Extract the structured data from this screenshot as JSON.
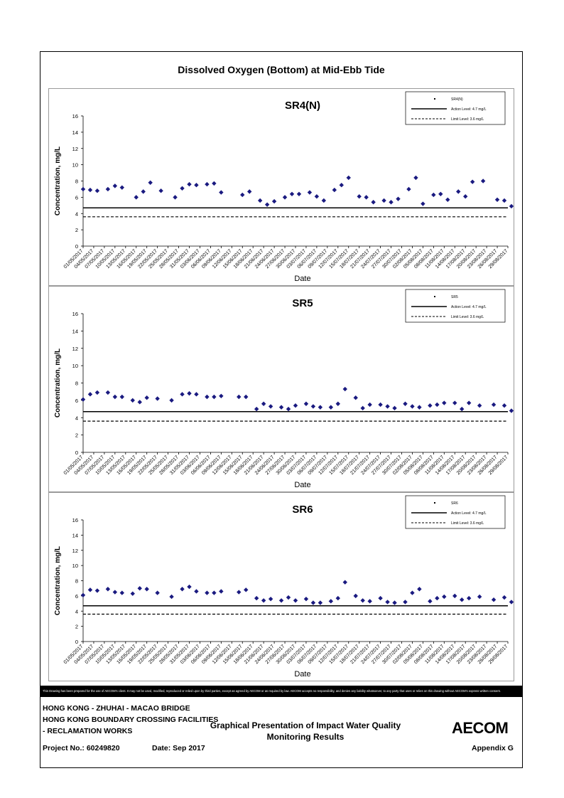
{
  "page": {
    "main_title": "Dissolved Oxygen (Bottom) at Mid-Ebb Tide",
    "disclaimer": "This Drawing has been prepared for the use of AECOM's client. It may not be used, modified, reproduced or relied upon by third parties, except as agreed by AECOM or as required by law. AECOM accepts no responsibility, and denies any liability whatsoever, to any party that uses or relies on this drawing without AECOM's express written consent.",
    "footer": {
      "line1": "HONG KONG - ZHUHAI - MACAO BRIDGE",
      "line2": "HONG KONG BOUNDARY CROSSING FACILITIES",
      "line3": "- RECLAMATION WORKS",
      "center_title_1": "Graphical Presentation of Impact Water Quality",
      "center_title_2": "Monitoring Results",
      "project": "Project No.: 60249820",
      "date": "Date: Sep 2017",
      "appendix": "Appendix G",
      "logo": "AECOM"
    }
  },
  "chart_data": [
    {
      "type": "scatter",
      "title": "SR4(N)",
      "xlabel": "Date",
      "ylabel": "Concentration, mg/L",
      "ylim": [
        0,
        16
      ],
      "yticks": [
        0,
        2,
        4,
        6,
        8,
        10,
        12,
        14,
        16
      ],
      "xticks": [
        "01/05/2017",
        "04/05/2017",
        "07/05/2017",
        "10/05/2017",
        "13/05/2017",
        "16/05/2017",
        "19/05/2017",
        "22/05/2017",
        "25/05/2017",
        "28/05/2017",
        "31/05/2017",
        "03/06/2017",
        "06/06/2017",
        "09/06/2017",
        "12/06/2017",
        "15/06/2017",
        "18/06/2017",
        "21/06/2017",
        "24/06/2017",
        "27/06/2017",
        "30/06/2017",
        "03/07/2017",
        "06/07/2017",
        "09/07/2017",
        "12/07/2017",
        "15/07/2017",
        "18/07/2017",
        "21/07/2017",
        "24/07/2017",
        "27/07/2017",
        "30/07/2017",
        "02/08/2017",
        "05/08/2017",
        "08/08/2017",
        "11/08/2017",
        "14/08/2017",
        "17/08/2017",
        "20/08/2017",
        "23/08/2017",
        "26/08/2017",
        "29/08/2017"
      ],
      "legend": [
        "SR4(N)",
        "Action Level: 4.7 mg/L",
        "Limit Level: 3.6 mg/L"
      ],
      "legend_position": "top-right",
      "action_level": 4.7,
      "limit_level": 3.6,
      "marker_color": "#1a1a80",
      "x": [
        "01/05/2017",
        "03/05/2017",
        "05/05/2017",
        "08/05/2017",
        "10/05/2017",
        "12/05/2017",
        "16/05/2017",
        "18/05/2017",
        "20/05/2017",
        "23/05/2017",
        "27/05/2017",
        "29/05/2017",
        "31/05/2017",
        "02/06/2017",
        "05/06/2017",
        "07/06/2017",
        "09/06/2017",
        "15/06/2017",
        "17/06/2017",
        "20/06/2017",
        "22/06/2017",
        "24/06/2017",
        "27/06/2017",
        "29/06/2017",
        "01/07/2017",
        "04/07/2017",
        "06/07/2017",
        "08/07/2017",
        "11/07/2017",
        "13/07/2017",
        "15/07/2017",
        "18/07/2017",
        "20/07/2017",
        "22/07/2017",
        "25/07/2017",
        "27/07/2017",
        "29/07/2017",
        "01/08/2017",
        "03/08/2017",
        "05/08/2017",
        "08/08/2017",
        "10/08/2017",
        "12/08/2017",
        "15/08/2017",
        "17/08/2017",
        "19/08/2017",
        "22/08/2017",
        "26/08/2017",
        "28/08/2017",
        "30/08/2017"
      ],
      "values": [
        7.0,
        6.9,
        6.8,
        7.0,
        7.4,
        7.2,
        6.0,
        6.7,
        7.8,
        6.8,
        6.0,
        7.1,
        7.6,
        7.5,
        7.6,
        7.7,
        6.6,
        6.3,
        6.7,
        5.6,
        5.1,
        5.5,
        6.0,
        6.4,
        6.4,
        6.6,
        6.1,
        5.6,
        6.9,
        7.5,
        8.4,
        6.1,
        6.0,
        5.4,
        5.6,
        5.4,
        5.8,
        7.0,
        8.4,
        5.2,
        6.3,
        6.4,
        5.7,
        6.7,
        6.1,
        7.9,
        8.0,
        5.7,
        5.6,
        4.9
      ]
    },
    {
      "type": "scatter",
      "title": "SR5",
      "xlabel": "Date",
      "ylabel": "Concentration, mg/L",
      "ylim": [
        0,
        16
      ],
      "yticks": [
        0,
        2,
        4,
        6,
        8,
        10,
        12,
        14,
        16
      ],
      "xticks": [
        "01/05/2017",
        "04/05/2017",
        "07/05/2017",
        "10/05/2017",
        "13/05/2017",
        "16/05/2017",
        "19/05/2017",
        "22/05/2017",
        "25/05/2017",
        "28/05/2017",
        "31/05/2017",
        "03/06/2017",
        "06/06/2017",
        "09/06/2017",
        "12/06/2017",
        "15/06/2017",
        "18/06/2017",
        "21/06/2017",
        "24/06/2017",
        "27/06/2017",
        "30/06/2017",
        "03/07/2017",
        "06/07/2017",
        "09/07/2017",
        "12/07/2017",
        "15/07/2017",
        "18/07/2017",
        "21/07/2017",
        "24/07/2017",
        "27/07/2017",
        "30/07/2017",
        "02/08/2017",
        "05/08/2017",
        "08/08/2017",
        "11/08/2017",
        "14/08/2017",
        "17/08/2017",
        "20/08/2017",
        "23/08/2017",
        "26/08/2017",
        "29/08/2017"
      ],
      "legend": [
        "SR5",
        "Action Level: 4.7 mg/L",
        "Limit Level: 3.6 mg/L"
      ],
      "legend_position": "top-right",
      "action_level": 4.7,
      "limit_level": 3.6,
      "marker_color": "#1a1a80",
      "x": [
        "01/05/2017",
        "03/05/2017",
        "05/05/2017",
        "08/05/2017",
        "10/05/2017",
        "12/05/2017",
        "15/05/2017",
        "17/05/2017",
        "19/05/2017",
        "22/05/2017",
        "26/05/2017",
        "29/05/2017",
        "31/05/2017",
        "02/06/2017",
        "05/06/2017",
        "07/06/2017",
        "09/06/2017",
        "14/06/2017",
        "16/06/2017",
        "19/06/2017",
        "21/06/2017",
        "23/06/2017",
        "26/06/2017",
        "28/06/2017",
        "30/06/2017",
        "03/07/2017",
        "05/07/2017",
        "07/07/2017",
        "10/07/2017",
        "12/07/2017",
        "14/07/2017",
        "17/07/2017",
        "19/07/2017",
        "21/07/2017",
        "24/07/2017",
        "26/07/2017",
        "28/07/2017",
        "31/07/2017",
        "02/08/2017",
        "04/08/2017",
        "07/08/2017",
        "09/08/2017",
        "11/08/2017",
        "14/08/2017",
        "16/08/2017",
        "18/08/2017",
        "21/08/2017",
        "25/08/2017",
        "28/08/2017",
        "30/08/2017"
      ],
      "values": [
        6.1,
        6.7,
        6.9,
        6.9,
        6.4,
        6.4,
        6.0,
        5.8,
        6.3,
        6.2,
        6.0,
        6.7,
        6.8,
        6.7,
        6.4,
        6.4,
        6.5,
        6.4,
        6.4,
        5.0,
        5.6,
        5.3,
        5.2,
        5.0,
        5.4,
        5.6,
        5.3,
        5.2,
        5.2,
        5.6,
        7.3,
        6.3,
        5.1,
        5.5,
        5.5,
        5.3,
        5.1,
        5.6,
        5.3,
        5.2,
        5.4,
        5.5,
        5.7,
        5.7,
        5.0,
        5.7,
        5.4,
        5.5,
        5.4,
        4.8
      ]
    },
    {
      "type": "scatter",
      "title": "SR6",
      "xlabel": "Date",
      "ylabel": "Concentration, mg/L",
      "ylim": [
        0,
        16
      ],
      "yticks": [
        0,
        2,
        4,
        6,
        8,
        10,
        12,
        14,
        16
      ],
      "xticks": [
        "01/05/2017",
        "04/05/2017",
        "07/05/2017",
        "10/05/2017",
        "13/05/2017",
        "16/05/2017",
        "19/05/2017",
        "22/05/2017",
        "25/05/2017",
        "28/05/2017",
        "31/05/2017",
        "03/06/2017",
        "06/06/2017",
        "09/06/2017",
        "12/06/2017",
        "15/06/2017",
        "18/06/2017",
        "21/06/2017",
        "24/06/2017",
        "27/06/2017",
        "30/06/2017",
        "03/07/2017",
        "06/07/2017",
        "09/07/2017",
        "12/07/2017",
        "15/07/2017",
        "18/07/2017",
        "21/07/2017",
        "24/07/2017",
        "27/07/2017",
        "30/07/2017",
        "02/08/2017",
        "05/08/2017",
        "08/08/2017",
        "11/08/2017",
        "14/08/2017",
        "17/08/2017",
        "20/08/2017",
        "23/08/2017",
        "26/08/2017",
        "29/08/2017"
      ],
      "legend": [
        "SR6",
        "Action Level: 4.7 mg/L",
        "Limit Level: 3.6 mg/L"
      ],
      "legend_position": "top-right",
      "action_level": 4.7,
      "limit_level": 3.6,
      "marker_color": "#1a1a80",
      "x": [
        "01/05/2017",
        "03/05/2017",
        "05/05/2017",
        "08/05/2017",
        "10/05/2017",
        "12/05/2017",
        "15/05/2017",
        "17/05/2017",
        "19/05/2017",
        "22/05/2017",
        "26/05/2017",
        "29/05/2017",
        "31/05/2017",
        "02/06/2017",
        "05/06/2017",
        "07/06/2017",
        "09/06/2017",
        "14/06/2017",
        "16/06/2017",
        "19/06/2017",
        "21/06/2017",
        "23/06/2017",
        "26/06/2017",
        "28/06/2017",
        "30/06/2017",
        "03/07/2017",
        "05/07/2017",
        "07/07/2017",
        "10/07/2017",
        "12/07/2017",
        "14/07/2017",
        "17/07/2017",
        "19/07/2017",
        "21/07/2017",
        "24/07/2017",
        "26/07/2017",
        "28/07/2017",
        "31/07/2017",
        "02/08/2017",
        "04/08/2017",
        "07/08/2017",
        "09/08/2017",
        "11/08/2017",
        "14/08/2017",
        "16/08/2017",
        "18/08/2017",
        "21/08/2017",
        "25/08/2017",
        "28/08/2017",
        "30/08/2017"
      ],
      "values": [
        6.1,
        6.8,
        6.7,
        6.9,
        6.5,
        6.4,
        6.3,
        7.0,
        6.9,
        6.4,
        5.9,
        6.9,
        7.2,
        6.6,
        6.4,
        6.4,
        6.6,
        6.5,
        6.8,
        5.7,
        5.4,
        5.6,
        5.4,
        5.8,
        5.4,
        5.6,
        5.1,
        5.1,
        5.3,
        5.7,
        7.8,
        6.0,
        5.4,
        5.3,
        5.7,
        5.2,
        5.1,
        5.2,
        6.4,
        6.9,
        5.3,
        5.7,
        5.9,
        6.0,
        5.5,
        5.7,
        5.9,
        5.5,
        5.8,
        5.2
      ]
    }
  ]
}
